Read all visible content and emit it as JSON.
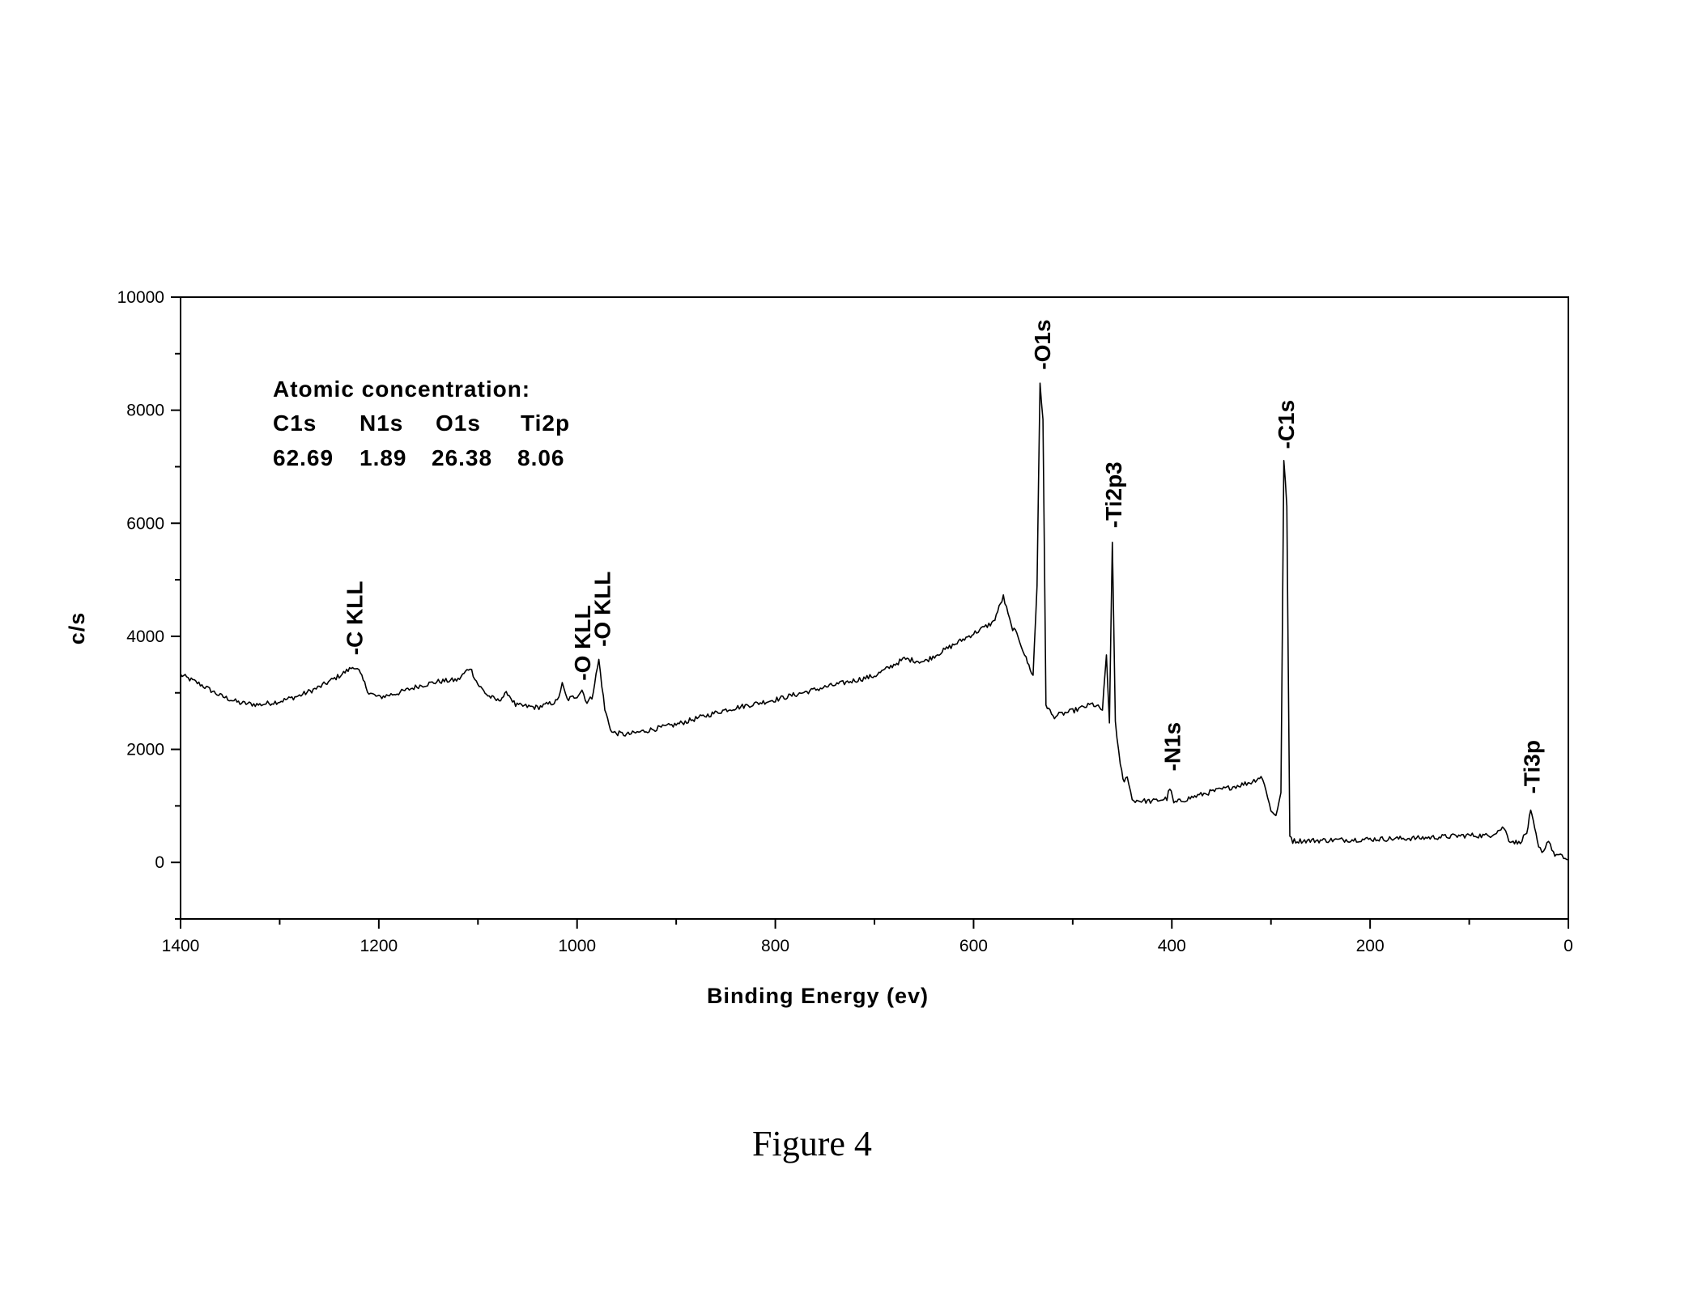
{
  "caption": "Figure 4",
  "chart_data": {
    "type": "line",
    "title": "",
    "xlabel": "Binding Energy (ev)",
    "ylabel": "c/s",
    "xlim": [
      1400,
      0
    ],
    "ylim": [
      -1000,
      10000
    ],
    "x_reversed": true,
    "x_ticks": [
      "1400",
      "1200",
      "1000",
      "800",
      "600",
      "400",
      "200",
      "0"
    ],
    "y_ticks": [
      "10000",
      "8000",
      "6000",
      "4000",
      "2000",
      "0"
    ],
    "grid": false,
    "annotation": {
      "heading": "Atomic concentration:",
      "names": [
        "C1s",
        "N1s",
        "O1s",
        "Ti2p"
      ],
      "values": [
        "62.69",
        "1.89",
        "26.38",
        "8.06"
      ]
    },
    "peak_labels": [
      {
        "text": "-C KLL",
        "x": 1225,
        "y": 3550
      },
      {
        "text": "-O KLL",
        "x": 995,
        "y": 3100
      },
      {
        "text": "-O KLL",
        "x": 975,
        "y": 3700
      },
      {
        "text": "-O1s",
        "x": 531,
        "y": 8600
      },
      {
        "text": "-Ti2p3",
        "x": 459,
        "y": 5800
      },
      {
        "text": "-C1s",
        "x": 285,
        "y": 7200
      },
      {
        "text": "-N1s",
        "x": 400,
        "y": 1500
      },
      {
        "text": "-Ti3p",
        "x": 37,
        "y": 1100
      }
    ],
    "series": [
      {
        "points": [
          [
            1400,
            3320
          ],
          [
            1380,
            3150
          ],
          [
            1360,
            2950
          ],
          [
            1340,
            2820
          ],
          [
            1320,
            2790
          ],
          [
            1300,
            2850
          ],
          [
            1280,
            2950
          ],
          [
            1260,
            3100
          ],
          [
            1240,
            3300
          ],
          [
            1225,
            3470
          ],
          [
            1220,
            3380
          ],
          [
            1210,
            3000
          ],
          [
            1200,
            2920
          ],
          [
            1180,
            3000
          ],
          [
            1160,
            3120
          ],
          [
            1140,
            3200
          ],
          [
            1120,
            3230
          ],
          [
            1108,
            3450
          ],
          [
            1100,
            3150
          ],
          [
            1090,
            2950
          ],
          [
            1080,
            2860
          ],
          [
            1070,
            3000
          ],
          [
            1062,
            2780
          ],
          [
            1040,
            2740
          ],
          [
            1020,
            2850
          ],
          [
            1015,
            3150
          ],
          [
            1010,
            2880
          ],
          [
            1000,
            2950
          ],
          [
            995,
            3050
          ],
          [
            990,
            2830
          ],
          [
            985,
            2920
          ],
          [
            978,
            3580
          ],
          [
            972,
            2700
          ],
          [
            965,
            2300
          ],
          [
            950,
            2260
          ],
          [
            900,
            2440
          ],
          [
            850,
            2700
          ],
          [
            800,
            2880
          ],
          [
            750,
            3100
          ],
          [
            700,
            3300
          ],
          [
            670,
            3600
          ],
          [
            650,
            3550
          ],
          [
            600,
            4050
          ],
          [
            580,
            4250
          ],
          [
            570,
            4700
          ],
          [
            562,
            4180
          ],
          [
            555,
            4000
          ],
          [
            547,
            3600
          ],
          [
            540,
            3300
          ],
          [
            536,
            4900
          ],
          [
            533,
            8500
          ],
          [
            530,
            7800
          ],
          [
            527,
            2800
          ],
          [
            520,
            2580
          ],
          [
            500,
            2680
          ],
          [
            480,
            2800
          ],
          [
            470,
            2700
          ],
          [
            466,
            3650
          ],
          [
            463,
            2500
          ],
          [
            460,
            5650
          ],
          [
            457,
            2500
          ],
          [
            452,
            1700
          ],
          [
            448,
            1400
          ],
          [
            445,
            1550
          ],
          [
            440,
            1100
          ],
          [
            420,
            1080
          ],
          [
            405,
            1130
          ],
          [
            402,
            1320
          ],
          [
            398,
            1050
          ],
          [
            380,
            1150
          ],
          [
            360,
            1250
          ],
          [
            340,
            1330
          ],
          [
            320,
            1420
          ],
          [
            310,
            1520
          ],
          [
            305,
            1300
          ],
          [
            300,
            900
          ],
          [
            295,
            850
          ],
          [
            290,
            1200
          ],
          [
            287,
            7100
          ],
          [
            284,
            6300
          ],
          [
            281,
            500
          ],
          [
            278,
            380
          ],
          [
            250,
            390
          ],
          [
            200,
            410
          ],
          [
            150,
            430
          ],
          [
            100,
            480
          ],
          [
            80,
            470
          ],
          [
            65,
            620
          ],
          [
            60,
            400
          ],
          [
            50,
            340
          ],
          [
            42,
            520
          ],
          [
            38,
            900
          ],
          [
            34,
            600
          ],
          [
            30,
            250
          ],
          [
            25,
            200
          ],
          [
            20,
            410
          ],
          [
            15,
            150
          ],
          [
            8,
            110
          ],
          [
            0,
            50
          ]
        ]
      }
    ]
  }
}
